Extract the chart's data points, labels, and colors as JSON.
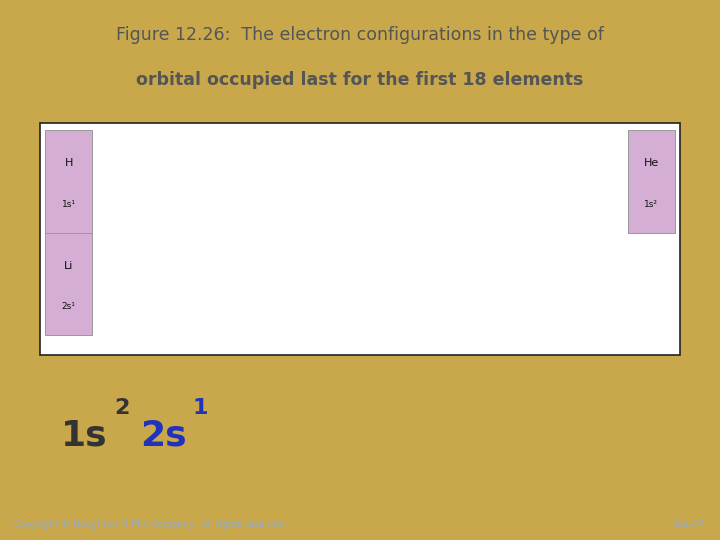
{
  "title_line1": "Figure 12.26:  The electron configurations in the type of",
  "title_line2": "orbital occupied last for the first 18 elements",
  "title_bg": "#cdc9a0",
  "main_bg": "#8b95b8",
  "border_color": "#c8a84b",
  "white_box_bg": "#ffffff",
  "cell_bg": "#d4aed4",
  "cell_border": "#999999",
  "label_color_1s": "#333333",
  "label_color_2s": "#2233bb",
  "copyright": "Copyright © Houghton Mifflin Company.  All rights reserved.",
  "slide_num": "12a–37",
  "footer_text_color": "#99aabb"
}
